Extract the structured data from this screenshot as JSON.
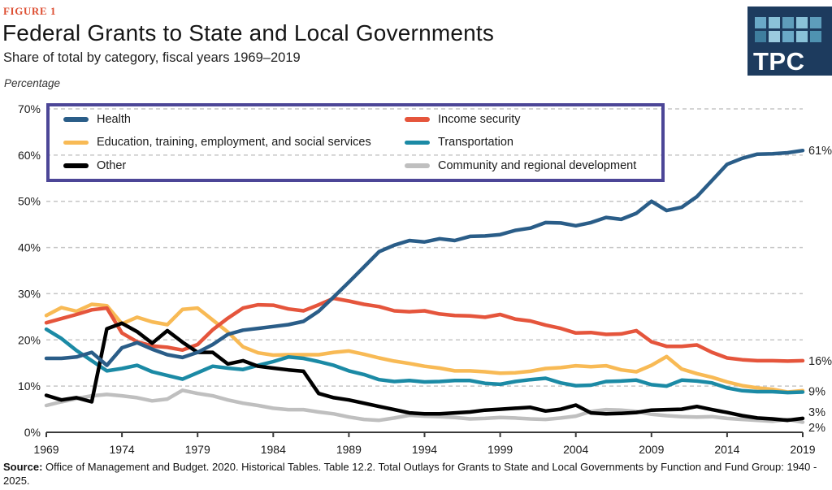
{
  "figure_label": "FIGURE 1",
  "title": "Federal Grants to State and Local Governments",
  "subtitle": "Share of total by category, fiscal years 1969–2019",
  "unit_label": "Percentage",
  "logo": {
    "text": "TPC",
    "background": "#1d3b5e",
    "squares": [
      "#6aa9c7",
      "#8ac2d8",
      "#5e9dbb",
      "#8ac2d8",
      "#5e9dbb",
      "#3f7e9e",
      "#9bcade",
      "#6aa9c7",
      "#8ac2d8",
      "#4f92b1"
    ]
  },
  "legend": {
    "border_color": "#4c4697",
    "items": [
      {
        "label": "Health",
        "color": "#2a5d88"
      },
      {
        "label": "Income security",
        "color": "#e5553c"
      },
      {
        "label": "Education, training, employment, and social services",
        "color": "#f8ba55"
      },
      {
        "label": "Transportation",
        "color": "#1b8aa5"
      },
      {
        "label": "Other",
        "color": "#000000"
      },
      {
        "label": "Community and regional development",
        "color": "#bfbfbf"
      }
    ]
  },
  "source": {
    "label": "Source:",
    "text": " Office of Management and Budget. 2020. Historical Tables. Table 12.2. Total Outlays for Grants to State and Local Governments by Function and Fund Group: 1940 - 2025."
  },
  "chart_data": {
    "type": "line",
    "title": "Federal Grants to State and Local Governments",
    "subtitle": "Share of total by category, fiscal years 1969–2019",
    "ylabel": "Percentage",
    "ylim": [
      0,
      70
    ],
    "y_ticks": [
      0,
      10,
      20,
      30,
      40,
      50,
      60,
      70
    ],
    "y_tick_suffix": "%",
    "x_range": [
      1969,
      2019
    ],
    "x_ticks": [
      1969,
      1974,
      1979,
      1984,
      1989,
      1994,
      1999,
      2004,
      2009,
      2014,
      2019
    ],
    "grid": "horizontal-dashed",
    "legend_position": "top-left-box",
    "grid_color": "#c6c6c6",
    "axis_color": "#3a3a3a",
    "years": [
      1969,
      1970,
      1971,
      1972,
      1973,
      1974,
      1975,
      1976,
      1977,
      1978,
      1979,
      1980,
      1981,
      1982,
      1983,
      1984,
      1985,
      1986,
      1987,
      1988,
      1989,
      1990,
      1991,
      1992,
      1993,
      1994,
      1995,
      1996,
      1997,
      1998,
      1999,
      2000,
      2001,
      2002,
      2003,
      2004,
      2005,
      2006,
      2007,
      2008,
      2009,
      2010,
      2011,
      2012,
      2013,
      2014,
      2015,
      2016,
      2017,
      2018,
      2019
    ],
    "series": [
      {
        "name": "Community and regional development",
        "color": "#bfbfbf",
        "end_label": "2%",
        "end_label_at": 1.05,
        "values": [
          5.8,
          6.6,
          7.3,
          7.9,
          8.2,
          7.9,
          7.5,
          6.8,
          7.2,
          9.1,
          8.4,
          7.9,
          7.0,
          6.3,
          5.8,
          5.2,
          4.9,
          4.9,
          4.4,
          4.0,
          3.3,
          2.8,
          2.6,
          3.1,
          3.7,
          3.5,
          3.4,
          3.2,
          2.9,
          3.0,
          3.2,
          3.1,
          2.9,
          2.8,
          3.1,
          3.5,
          4.5,
          4.9,
          4.8,
          4.5,
          3.9,
          3.6,
          3.4,
          3.3,
          3.4,
          3.0,
          2.8,
          2.6,
          2.4,
          2.8,
          2.2
        ]
      },
      {
        "name": "Education, training, employment, and social services",
        "color": "#f8ba55",
        "end_label": null,
        "end_label_at": null,
        "values": [
          25.3,
          27.0,
          26.2,
          27.7,
          27.4,
          23.5,
          24.9,
          23.9,
          23.3,
          26.6,
          26.9,
          24.3,
          21.7,
          18.5,
          17.2,
          16.7,
          16.8,
          16.8,
          16.8,
          17.3,
          17.6,
          16.9,
          16.1,
          15.4,
          14.9,
          14.3,
          13.9,
          13.3,
          13.3,
          13.1,
          12.8,
          12.9,
          13.2,
          13.8,
          14.0,
          14.4,
          14.2,
          14.4,
          13.5,
          13.1,
          14.5,
          16.4,
          13.7,
          12.7,
          11.9,
          10.9,
          10.1,
          9.6,
          9.3,
          8.7,
          9.0
        ]
      },
      {
        "name": "Transportation",
        "color": "#1b8aa5",
        "end_label": "9%",
        "end_label_at": 8.9,
        "values": [
          22.3,
          20.3,
          17.7,
          15.5,
          13.3,
          13.8,
          14.5,
          13.1,
          12.3,
          11.5,
          12.9,
          14.3,
          13.9,
          13.6,
          14.5,
          15.3,
          16.3,
          16.0,
          15.3,
          14.5,
          13.3,
          12.5,
          11.4,
          11.0,
          11.2,
          10.9,
          11.0,
          11.2,
          11.2,
          10.6,
          10.4,
          11.0,
          11.4,
          11.7,
          10.7,
          10.1,
          10.2,
          11.0,
          11.1,
          11.3,
          10.3,
          10.0,
          11.3,
          11.1,
          10.7,
          9.6,
          9.0,
          8.8,
          8.8,
          8.6,
          8.7
        ]
      },
      {
        "name": "Income security",
        "color": "#e5553c",
        "end_label": "16%",
        "end_label_at": 15.5,
        "values": [
          23.7,
          24.6,
          25.5,
          26.5,
          26.9,
          21.5,
          19.6,
          18.7,
          18.4,
          17.8,
          19.0,
          22.2,
          24.7,
          26.9,
          27.6,
          27.5,
          26.7,
          26.3,
          27.6,
          29.0,
          28.4,
          27.7,
          27.2,
          26.3,
          26.1,
          26.3,
          25.6,
          25.3,
          25.2,
          24.9,
          25.5,
          24.5,
          24.1,
          23.2,
          22.5,
          21.5,
          21.6,
          21.2,
          21.3,
          22.0,
          19.6,
          18.6,
          18.6,
          18.9,
          17.3,
          16.1,
          15.7,
          15.5,
          15.5,
          15.4,
          15.5
        ]
      },
      {
        "name": "Other",
        "color": "#000000",
        "end_label": "3%",
        "end_label_at": 4.4,
        "values": [
          8.0,
          7.0,
          7.5,
          6.6,
          22.4,
          23.6,
          21.8,
          19.3,
          22.0,
          19.5,
          17.3,
          17.3,
          14.8,
          15.5,
          14.3,
          13.9,
          13.5,
          13.2,
          8.4,
          7.5,
          7.0,
          6.3,
          5.6,
          4.9,
          4.2,
          4.0,
          4.0,
          4.2,
          4.4,
          4.8,
          5.0,
          5.2,
          5.4,
          4.6,
          5.0,
          5.9,
          4.2,
          4.0,
          4.1,
          4.3,
          4.8,
          4.9,
          5.0,
          5.6,
          4.9,
          4.3,
          3.6,
          3.1,
          2.9,
          2.6,
          3.0
        ]
      },
      {
        "name": "Health",
        "color": "#2a5d88",
        "end_label": "61%",
        "end_label_at": 61.0,
        "values": [
          16.0,
          16.0,
          16.3,
          17.3,
          14.5,
          18.3,
          19.4,
          18.0,
          16.8,
          16.2,
          17.3,
          19.0,
          21.2,
          22.1,
          22.5,
          22.9,
          23.3,
          24.0,
          26.2,
          29.3,
          32.5,
          35.8,
          39.1,
          40.5,
          41.5,
          41.2,
          41.9,
          41.5,
          42.4,
          42.5,
          42.8,
          43.7,
          44.2,
          45.4,
          45.3,
          44.7,
          45.4,
          46.5,
          46.1,
          47.4,
          50.0,
          48.0,
          48.7,
          51.0,
          54.5,
          58.0,
          59.3,
          60.2,
          60.3,
          60.5,
          61.0
        ]
      }
    ]
  }
}
